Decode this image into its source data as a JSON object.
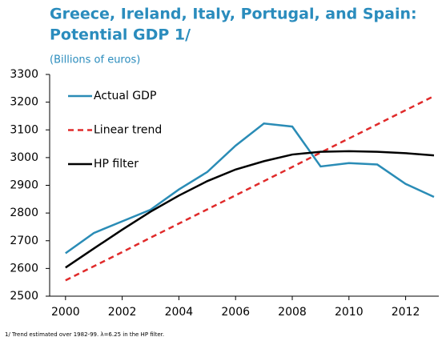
{
  "chart_data": {
    "type": "line",
    "title": [
      "Greece, Ireland, Italy, Portugal, and Spain:",
      "Potential GDP 1/"
    ],
    "subtitle": "(Billions of euros)",
    "footnote": "1/ Trend estimated over 1982-99. λ=6.25 in the HP filter.",
    "x": [
      2000,
      2001,
      2002,
      2003,
      2004,
      2005,
      2006,
      2007,
      2008,
      2009,
      2010,
      2011,
      2012,
      2013
    ],
    "series": [
      {
        "name": "Actual GDP",
        "color": "#2a8cb6",
        "style": "solid",
        "values": [
          2655,
          2728,
          2770,
          2812,
          2885,
          2948,
          3043,
          3123,
          3112,
          2968,
          2980,
          2975,
          2905,
          2858
        ]
      },
      {
        "name": "Linear trend",
        "color": "#e02a2a",
        "style": "dashed",
        "values": [
          2557,
          2608,
          2659,
          2711,
          2762,
          2813,
          2864,
          2915,
          2966,
          3018,
          3069,
          3120,
          3171,
          3222
        ]
      },
      {
        "name": "HP filter",
        "color": "#000000",
        "style": "solid",
        "values": [
          2603,
          2672,
          2740,
          2805,
          2863,
          2915,
          2957,
          2987,
          3011,
          3021,
          3023,
          3021,
          3016,
          3008
        ]
      }
    ],
    "xlim": [
      1999.44,
      2013.17
    ],
    "xticks": [
      2000,
      2002,
      2004,
      2006,
      2008,
      2010,
      2012
    ],
    "ylim": [
      2500,
      3300
    ],
    "yticks": [
      2500,
      2600,
      2700,
      2800,
      2900,
      3000,
      3100,
      3200,
      3300
    ],
    "grid": false,
    "legend": "upper left"
  }
}
